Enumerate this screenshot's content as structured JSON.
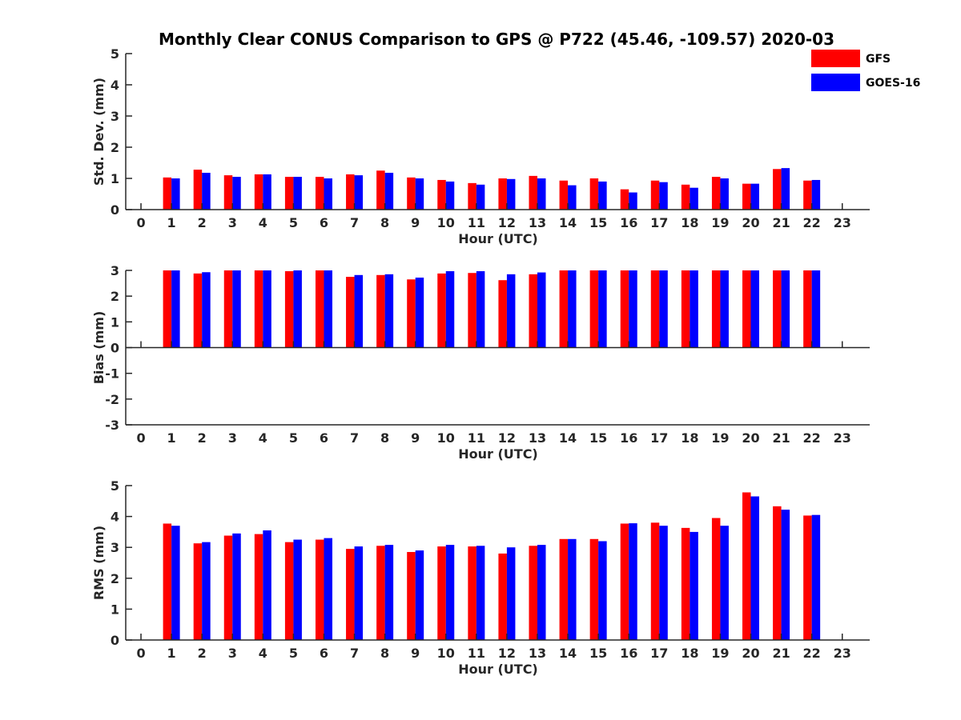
{
  "figure": {
    "title": "Monthly Clear CONUS Comparison to GPS @ P722 (45.46, -109.57) 2020-03"
  },
  "legend": {
    "placement": "top-right",
    "entries": [
      {
        "name": "GFS",
        "color": "#ff0000"
      },
      {
        "name": "GOES-16",
        "color": "#0000ff"
      }
    ]
  },
  "chart_data": [
    {
      "type": "bar",
      "xlabel": "Hour (UTC)",
      "ylabel": "Std. Dev. (mm)",
      "ylim": [
        0,
        5
      ],
      "yticks": [
        0,
        1,
        2,
        3,
        4,
        5
      ],
      "categories": [
        "0",
        "1",
        "2",
        "3",
        "4",
        "5",
        "6",
        "7",
        "8",
        "9",
        "10",
        "11",
        "12",
        "13",
        "14",
        "15",
        "16",
        "17",
        "18",
        "19",
        "20",
        "21",
        "22",
        "23"
      ],
      "series": [
        {
          "name": "GFS",
          "color": "#ff0000",
          "values": [
            null,
            1.03,
            1.28,
            1.1,
            1.13,
            1.05,
            1.05,
            1.13,
            1.25,
            1.03,
            0.95,
            0.85,
            1.0,
            1.08,
            0.93,
            1.0,
            0.65,
            0.93,
            0.8,
            1.05,
            0.83,
            1.3,
            0.93,
            null
          ]
        },
        {
          "name": "GOES-16",
          "color": "#0000ff",
          "values": [
            null,
            1.0,
            1.18,
            1.05,
            1.13,
            1.05,
            1.0,
            1.1,
            1.18,
            1.0,
            0.9,
            0.8,
            0.98,
            1.0,
            0.78,
            0.9,
            0.55,
            0.88,
            0.7,
            1.0,
            0.83,
            1.33,
            0.95,
            null
          ]
        }
      ]
    },
    {
      "type": "bar",
      "xlabel": "Hour (UTC)",
      "ylabel": "Bias (mm)",
      "ylim": [
        -3,
        3
      ],
      "yticks": [
        -3,
        -2,
        -1,
        0,
        1,
        2,
        3
      ],
      "categories": [
        "0",
        "1",
        "2",
        "3",
        "4",
        "5",
        "6",
        "7",
        "8",
        "9",
        "10",
        "11",
        "12",
        "13",
        "14",
        "15",
        "16",
        "17",
        "18",
        "19",
        "20",
        "21",
        "22",
        "23"
      ],
      "series": [
        {
          "name": "GFS",
          "color": "#ff0000",
          "values": [
            null,
            3.0,
            2.88,
            3.0,
            3.0,
            2.97,
            3.0,
            2.75,
            2.82,
            2.65,
            2.88,
            2.9,
            2.62,
            2.85,
            3.0,
            3.0,
            3.0,
            3.0,
            3.0,
            3.0,
            3.0,
            3.0,
            3.0,
            null
          ]
        },
        {
          "name": "GOES-16",
          "color": "#0000ff",
          "values": [
            null,
            3.0,
            2.93,
            3.0,
            3.0,
            3.0,
            3.0,
            2.82,
            2.85,
            2.72,
            2.97,
            2.97,
            2.85,
            2.92,
            3.0,
            3.0,
            3.0,
            3.0,
            3.0,
            3.0,
            3.0,
            3.0,
            3.0,
            null
          ]
        }
      ]
    },
    {
      "type": "bar",
      "xlabel": "Hour (UTC)",
      "ylabel": "RMS (mm)",
      "ylim": [
        0,
        5
      ],
      "yticks": [
        0,
        1,
        2,
        3,
        4,
        5
      ],
      "categories": [
        "0",
        "1",
        "2",
        "3",
        "4",
        "5",
        "6",
        "7",
        "8",
        "9",
        "10",
        "11",
        "12",
        "13",
        "14",
        "15",
        "16",
        "17",
        "18",
        "19",
        "20",
        "21",
        "22",
        "23"
      ],
      "series": [
        {
          "name": "GFS",
          "color": "#ff0000",
          "values": [
            null,
            3.77,
            3.13,
            3.38,
            3.43,
            3.17,
            3.25,
            2.95,
            3.05,
            2.85,
            3.03,
            3.03,
            2.8,
            3.05,
            3.27,
            3.27,
            3.77,
            3.8,
            3.63,
            3.95,
            4.78,
            4.33,
            4.03,
            null
          ]
        },
        {
          "name": "GOES-16",
          "color": "#0000ff",
          "values": [
            null,
            3.7,
            3.17,
            3.45,
            3.55,
            3.25,
            3.3,
            3.03,
            3.08,
            2.9,
            3.08,
            3.05,
            3.0,
            3.08,
            3.27,
            3.2,
            3.78,
            3.7,
            3.5,
            3.7,
            4.65,
            4.22,
            4.05,
            null
          ]
        }
      ]
    }
  ]
}
